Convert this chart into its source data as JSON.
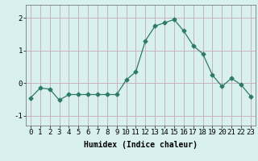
{
  "x": [
    0,
    1,
    2,
    3,
    4,
    5,
    6,
    7,
    8,
    9,
    10,
    11,
    12,
    13,
    14,
    15,
    16,
    17,
    18,
    19,
    20,
    21,
    22,
    23
  ],
  "y": [
    -0.45,
    -0.15,
    -0.18,
    -0.52,
    -0.35,
    -0.35,
    -0.35,
    -0.35,
    -0.35,
    -0.35,
    0.1,
    0.35,
    1.3,
    1.75,
    1.85,
    1.95,
    1.6,
    1.15,
    0.9,
    0.25,
    -0.1,
    0.15,
    -0.05,
    -0.4
  ],
  "line_color": "#2d7a6a",
  "marker": "D",
  "marker_size": 2.5,
  "bg_color": "#d8f0ee",
  "grid_color": "#c8a8b8",
  "xlabel": "Humidex (Indice chaleur)",
  "xlim": [
    -0.5,
    23.5
  ],
  "ylim": [
    -1.3,
    2.4
  ],
  "yticks": [
    -1,
    0,
    1,
    2
  ],
  "xlabel_fontsize": 7,
  "tick_fontsize": 6.5
}
